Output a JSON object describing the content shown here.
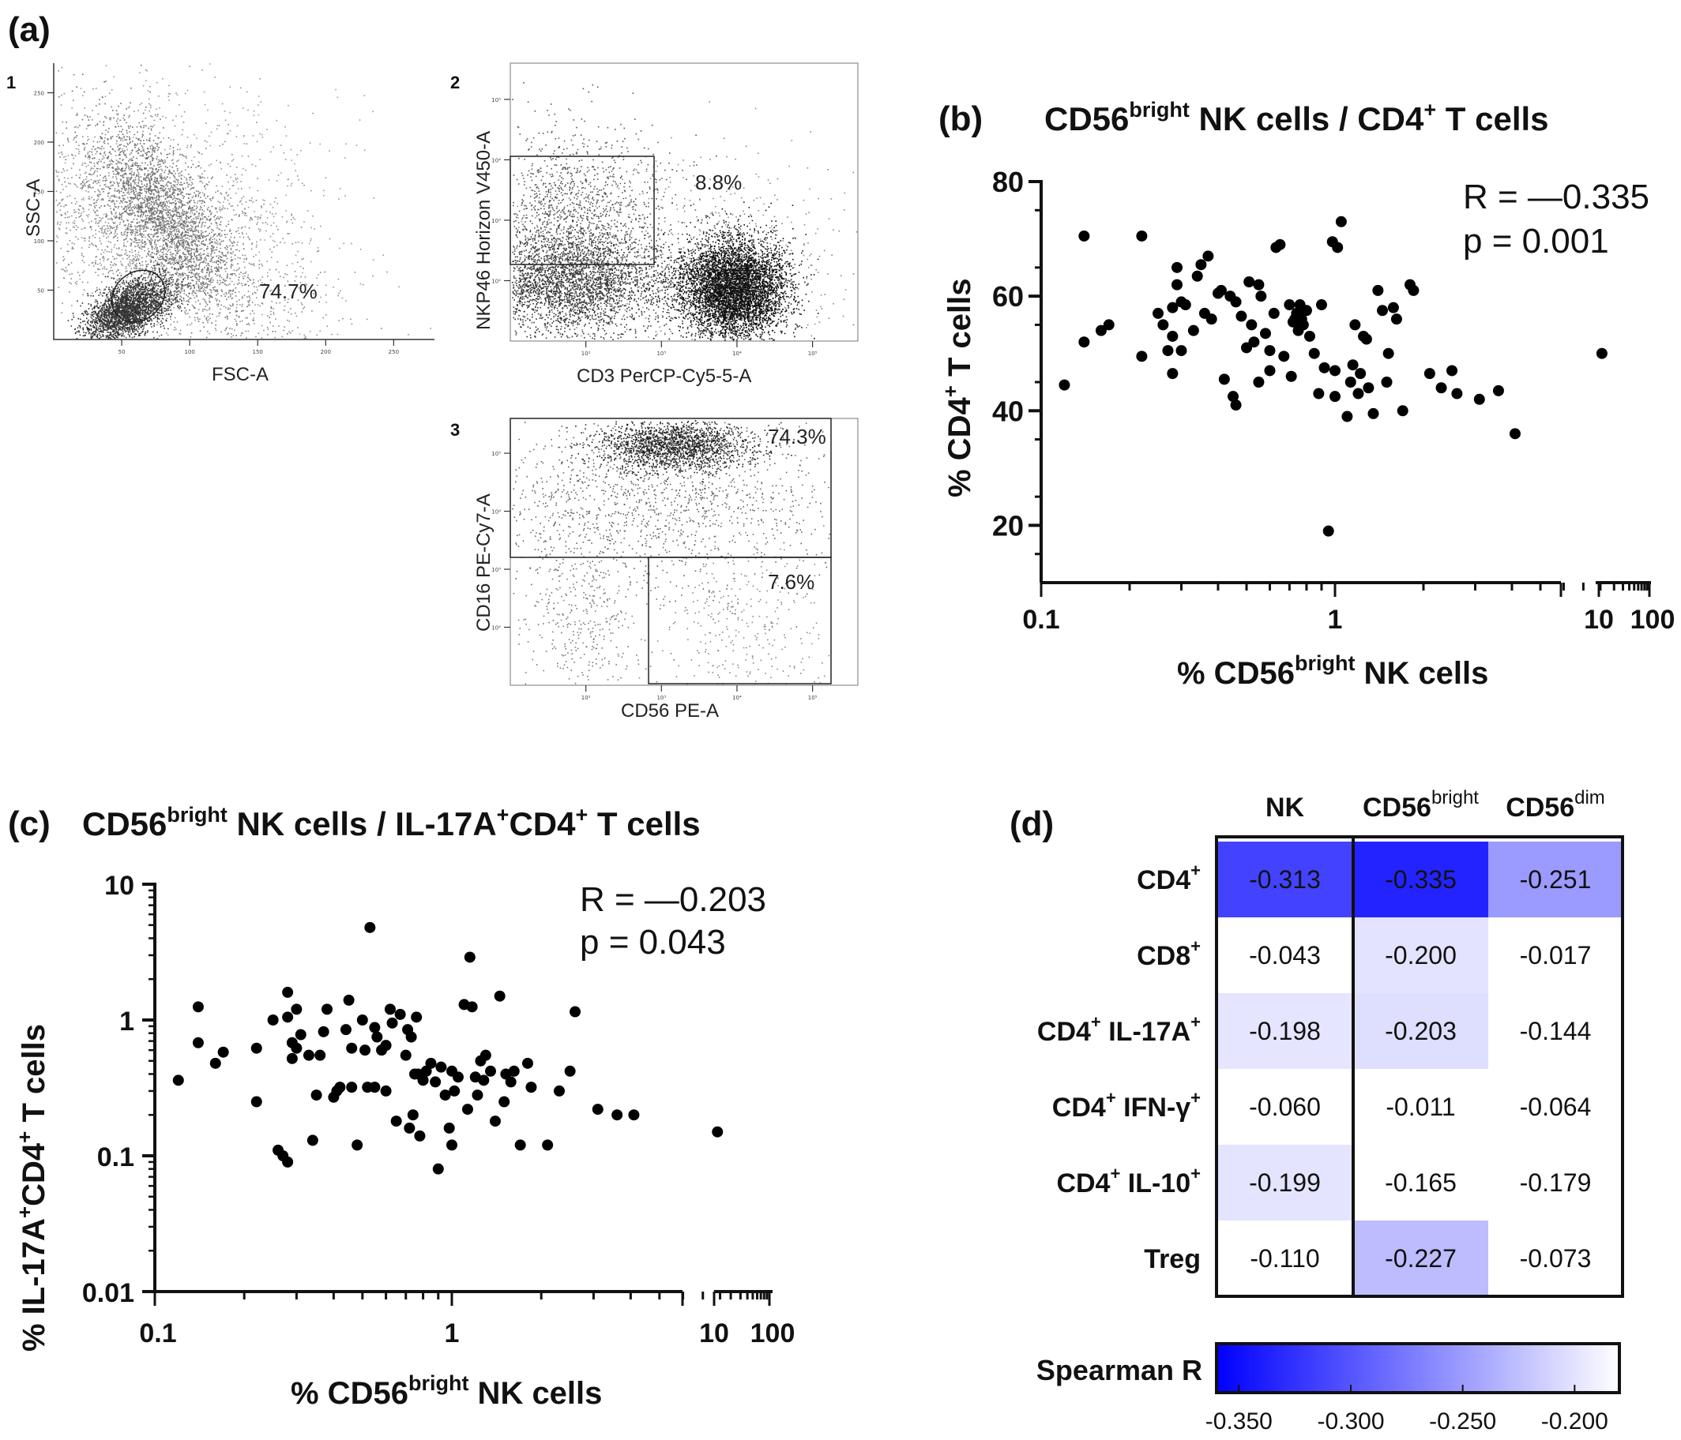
{
  "panel_a": {
    "label": "(a)",
    "plot1": {
      "index": "1",
      "ylabel": "SSC-A",
      "xlabel": "FSC-A",
      "pct": "74.7%",
      "xticks": [
        "50",
        "100",
        "150",
        "200",
        "250"
      ],
      "yticks": [
        "50",
        "100",
        "150",
        "200",
        "250"
      ]
    },
    "plot2": {
      "index": "2",
      "ylabel": "NKP46 Horizon V450-A",
      "xlabel": "CD3 PerCP-Cy5-5-A",
      "pct": "8.8%",
      "xticks": [
        "10²",
        "10³",
        "10⁴",
        "10⁵"
      ],
      "yticks": [
        "10²",
        "10³",
        "10⁴",
        "10⁵"
      ]
    },
    "plot3": {
      "index": "3",
      "ylabel": "CD16 PE-Cy7-A",
      "xlabel": "CD56 PE-A",
      "pct_top": "74.3%",
      "pct_bottom": "7.6%",
      "xticks": [
        "10²",
        "10³",
        "10⁴",
        "10⁵"
      ],
      "yticks": [
        "10²",
        "10³",
        "10⁴",
        "10⁵"
      ]
    }
  },
  "panel_b": {
    "label": "(b)",
    "title_a": "CD56",
    "title_sup1": "bright",
    "title_b": " NK cells / CD4",
    "title_sup2": "+",
    "title_c": " T cells",
    "ylabel_a": "% CD4",
    "ylabel_sup": "+",
    "ylabel_b": " T cells",
    "xlabel_a": "% CD56",
    "xlabel_sup": "bright",
    "xlabel_b": " NK cells",
    "stat_r": "R = —0.335",
    "stat_p": "p = 0.001"
  },
  "panel_c": {
    "label": "(c)",
    "title_a": "CD56",
    "title_sup1": "bright",
    "title_b": " NK cells / IL-17A",
    "title_sup2": "+",
    "title_c": "CD4",
    "title_sup3": "+",
    "title_d": " T cells",
    "ylabel_a": "% IL-17A",
    "ylabel_sup1": "+",
    "ylabel_b": "CD4",
    "ylabel_sup2": "+",
    "ylabel_c": " T cells",
    "xlabel_a": "% CD56",
    "xlabel_sup": "bright",
    "xlabel_b": " NK cells",
    "stat_r": "R = —0.203",
    "stat_p": "p = 0.043"
  },
  "panel_d": {
    "label": "(d)",
    "col_headers": [
      {
        "main": "NK",
        "sup": ""
      },
      {
        "main": "CD56",
        "sup": "bright"
      },
      {
        "main": "CD56",
        "sup": "dim"
      }
    ],
    "row_headers": [
      {
        "a": "CD4",
        "sa": "+",
        "b": "",
        "sb": ""
      },
      {
        "a": "CD8",
        "sa": "+",
        "b": "",
        "sb": ""
      },
      {
        "a": "CD4",
        "sa": "+",
        "b": " IL-17A",
        "sb": "+"
      },
      {
        "a": "CD4",
        "sa": "+",
        "b": " IFN-γ",
        "sb": "+"
      },
      {
        "a": "CD4",
        "sa": "+",
        "b": " IL-10",
        "sb": "+"
      },
      {
        "a": "Treg",
        "sa": "",
        "b": "",
        "sb": ""
      }
    ],
    "cells": [
      [
        "-0.313",
        "-0.335",
        "-0.251"
      ],
      [
        "-0.043",
        "-0.200",
        "-0.017"
      ],
      [
        "-0.198",
        "-0.203",
        "-0.144"
      ],
      [
        "-0.060",
        "-0.011",
        "-0.064"
      ],
      [
        "-0.199",
        "-0.165",
        "-0.179"
      ],
      [
        "-0.110",
        "-0.227",
        "-0.073"
      ]
    ],
    "colorbar_label": "Spearman R",
    "colorbar_ticks": [
      "-0.350",
      "-0.300",
      "-0.250",
      "-0.200"
    ],
    "color_min": "#0000ff",
    "color_max": "#ffffff"
  },
  "chart_data": [
    {
      "type": "scatter",
      "panel": "b",
      "title": "CD56bright NK cells / CD4+ T cells",
      "xlabel": "% CD56bright NK cells",
      "ylabel": "% CD4+ T cells",
      "xscale": "log",
      "xlim": [
        0.1,
        100
      ],
      "ylim": [
        10,
        80
      ],
      "xticks": [
        "0.1",
        "1",
        "10",
        "100"
      ],
      "yticks": [
        "20",
        "40",
        "60",
        "80"
      ],
      "x": [
        0.12,
        0.14,
        0.14,
        0.16,
        0.17,
        0.22,
        0.22,
        0.25,
        0.26,
        0.27,
        0.28,
        0.28,
        0.28,
        0.29,
        0.29,
        0.3,
        0.3,
        0.31,
        0.33,
        0.34,
        0.35,
        0.36,
        0.37,
        0.38,
        0.4,
        0.41,
        0.42,
        0.44,
        0.45,
        0.46,
        0.46,
        0.48,
        0.5,
        0.51,
        0.52,
        0.53,
        0.55,
        0.55,
        0.56,
        0.58,
        0.6,
        0.6,
        0.62,
        0.63,
        0.65,
        0.67,
        0.7,
        0.71,
        0.72,
        0.73,
        0.74,
        0.75,
        0.76,
        0.77,
        0.78,
        0.8,
        0.82,
        0.85,
        0.88,
        0.9,
        0.92,
        0.95,
        0.98,
        1.0,
        1.0,
        1.02,
        1.05,
        1.1,
        1.13,
        1.15,
        1.17,
        1.2,
        1.22,
        1.25,
        1.28,
        1.3,
        1.35,
        1.4,
        1.45,
        1.5,
        1.52,
        1.58,
        1.62,
        1.7,
        1.8,
        1.85,
        2.1,
        2.3,
        2.5,
        2.6,
        3.1,
        3.6,
        4.1,
        11.5
      ],
      "y": [
        44.5,
        52,
        70.5,
        54,
        55,
        70.5,
        49.5,
        57,
        55,
        50.5,
        53,
        46.5,
        58,
        65,
        62,
        59,
        50.5,
        58.5,
        54,
        63.5,
        65.5,
        57,
        67,
        56,
        60.5,
        61,
        45.5,
        60,
        42.5,
        41,
        59,
        56.5,
        51,
        62.5,
        55,
        52,
        62,
        45,
        60,
        53.5,
        50.5,
        47,
        57,
        68.5,
        69,
        49.5,
        58.5,
        46,
        55.5,
        56,
        57,
        54,
        58.5,
        56,
        55,
        57.5,
        53,
        50,
        43,
        58.5,
        47.5,
        19,
        69.5,
        47,
        42.5,
        68.5,
        73,
        39,
        45,
        48,
        55,
        43,
        46.5,
        53,
        52.5,
        44,
        39.5,
        61,
        57.5,
        45,
        50,
        58,
        56,
        40,
        62,
        61,
        46.5,
        44,
        47,
        43,
        42,
        43.5,
        36,
        50
      ],
      "stats": {
        "R": -0.335,
        "p": 0.001
      }
    },
    {
      "type": "scatter",
      "panel": "c",
      "title": "CD56bright NK cells / IL-17A+CD4+ T cells",
      "xlabel": "% CD56bright NK cells",
      "ylabel": "% IL-17A+CD4+ T cells",
      "xscale": "log",
      "yscale": "log",
      "xlim": [
        0.1,
        100
      ],
      "ylim": [
        0.01,
        10
      ],
      "xticks": [
        "0.1",
        "1",
        "10",
        "100"
      ],
      "yticks": [
        "0.01",
        "0.1",
        "1",
        "10"
      ],
      "x": [
        0.12,
        0.14,
        0.14,
        0.16,
        0.17,
        0.22,
        0.22,
        0.25,
        0.26,
        0.27,
        0.28,
        0.28,
        0.28,
        0.29,
        0.29,
        0.3,
        0.3,
        0.31,
        0.33,
        0.34,
        0.35,
        0.36,
        0.37,
        0.38,
        0.4,
        0.41,
        0.42,
        0.44,
        0.45,
        0.46,
        0.46,
        0.48,
        0.5,
        0.51,
        0.52,
        0.53,
        0.55,
        0.55,
        0.56,
        0.58,
        0.6,
        0.6,
        0.62,
        0.63,
        0.65,
        0.67,
        0.7,
        0.71,
        0.72,
        0.73,
        0.74,
        0.75,
        0.76,
        0.77,
        0.78,
        0.8,
        0.82,
        0.85,
        0.88,
        0.9,
        0.92,
        0.95,
        0.98,
        1.0,
        1.0,
        1.02,
        1.05,
        1.1,
        1.13,
        1.15,
        1.17,
        1.2,
        1.22,
        1.25,
        1.28,
        1.3,
        1.35,
        1.4,
        1.45,
        1.5,
        1.52,
        1.58,
        1.62,
        1.7,
        1.8,
        1.85,
        2.1,
        2.3,
        2.5,
        2.6,
        3.1,
        3.6,
        4.1,
        11.5
      ],
      "y": [
        0.36,
        1.25,
        0.68,
        0.48,
        0.58,
        0.62,
        0.25,
        1.0,
        0.11,
        0.1,
        1.6,
        0.09,
        1.05,
        0.68,
        0.52,
        1.2,
        0.62,
        0.78,
        0.55,
        0.13,
        0.28,
        0.55,
        0.82,
        1.2,
        0.27,
        0.3,
        0.32,
        0.85,
        1.4,
        0.32,
        0.62,
        0.12,
        1.0,
        0.6,
        0.32,
        4.8,
        0.32,
        0.88,
        0.75,
        0.6,
        0.3,
        0.65,
        1.2,
        0.95,
        0.18,
        1.1,
        0.55,
        0.85,
        0.16,
        0.75,
        0.2,
        0.4,
        1.05,
        0.4,
        0.14,
        0.36,
        0.42,
        0.48,
        0.35,
        0.08,
        0.45,
        0.28,
        0.16,
        0.42,
        0.12,
        0.3,
        0.38,
        1.3,
        0.22,
        2.9,
        1.25,
        0.38,
        0.28,
        0.5,
        0.36,
        0.55,
        0.42,
        0.18,
        1.5,
        0.25,
        0.4,
        0.35,
        0.42,
        0.12,
        0.48,
        0.32,
        0.12,
        0.3,
        0.42,
        1.15,
        0.22,
        0.2,
        0.2,
        0.15
      ],
      "stats": {
        "R": -0.203,
        "p": 0.043
      }
    },
    {
      "type": "heatmap",
      "panel": "d",
      "rows": [
        "CD4+",
        "CD8+",
        "CD4+ IL-17A+",
        "CD4+ IFN-γ+",
        "CD4+ IL-10+",
        "Treg"
      ],
      "cols": [
        "NK",
        "CD56bright",
        "CD56dim"
      ],
      "values": [
        [
          -0.313,
          -0.335,
          -0.251
        ],
        [
          -0.043,
          -0.2,
          -0.017
        ],
        [
          -0.198,
          -0.203,
          -0.144
        ],
        [
          -0.06,
          -0.011,
          -0.064
        ],
        [
          -0.199,
          -0.165,
          -0.179
        ],
        [
          -0.11,
          -0.227,
          -0.073
        ]
      ],
      "color_scale": {
        "label": "Spearman R",
        "min": -0.36,
        "max": -0.18,
        "ticks": [
          -0.35,
          -0.3,
          -0.25,
          -0.2
        ]
      }
    }
  ]
}
